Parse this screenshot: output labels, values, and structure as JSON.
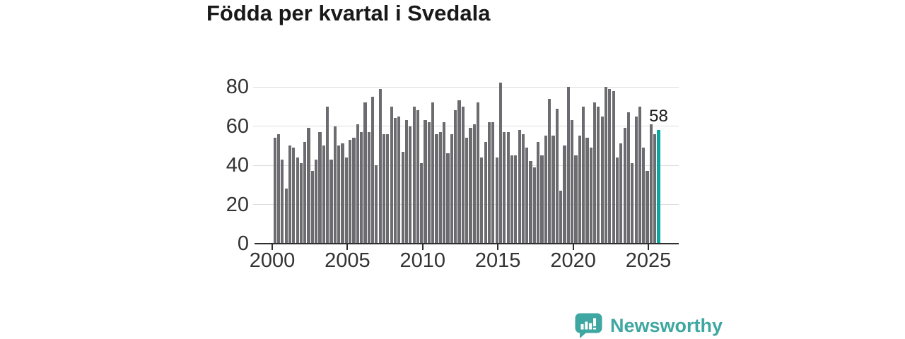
{
  "title": "Födda per kvartal i Svedala",
  "chart_data": {
    "type": "bar",
    "title": "Födda per kvartal i Svedala",
    "x_unit": "quarter",
    "x_start": "2000 Q1",
    "x_end": "2025 Q3",
    "xlabel": "",
    "ylabel": "",
    "ylim": [
      0,
      88
    ],
    "yticks": [
      0,
      20,
      40,
      60,
      80
    ],
    "xticks": [
      2000,
      2005,
      2010,
      2015,
      2020,
      2025
    ],
    "grid": true,
    "legend": "none",
    "bar_color": "#6b6b70",
    "highlight_color": "#0aa6a0",
    "highlight": {
      "index": 102,
      "quarter": "2025 Q3",
      "value": 58,
      "label": "58"
    },
    "series": [
      {
        "name": "Födda",
        "values": [
          54,
          56,
          43,
          28,
          50,
          49,
          44,
          41,
          52,
          59,
          37,
          43,
          57,
          50,
          70,
          43,
          60,
          50,
          51,
          44,
          53,
          54,
          61,
          57,
          72,
          57,
          75,
          40,
          79,
          56,
          56,
          70,
          64,
          65,
          47,
          63,
          60,
          70,
          68,
          41,
          63,
          62,
          72,
          56,
          57,
          62,
          46,
          56,
          68,
          73,
          70,
          54,
          59,
          61,
          72,
          44,
          52,
          62,
          62,
          44,
          82,
          57,
          57,
          45,
          45,
          58,
          56,
          49,
          42,
          39,
          52,
          45,
          55,
          74,
          55,
          69,
          27,
          50,
          80,
          63,
          45,
          55,
          70,
          54,
          49,
          72,
          70,
          65,
          80,
          79,
          78,
          44,
          51,
          59,
          67,
          41,
          65,
          70,
          49,
          37,
          61,
          56,
          58
        ]
      }
    ]
  },
  "annotation": {
    "latest_value_label": "58"
  },
  "branding": {
    "name": "Newsworthy",
    "text_color": "#3fa7a1",
    "icon": "speech-bubble-bar-chart-icon"
  }
}
